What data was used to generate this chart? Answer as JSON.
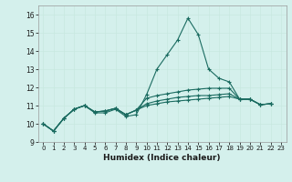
{
  "xlabel": "Humidex (Indice chaleur)",
  "background_color": "#d4f0ec",
  "grid_color": "#c8e8e0",
  "line_color": "#1a6b60",
  "xlim": [
    -0.5,
    23.5
  ],
  "ylim": [
    9,
    16.5
  ],
  "yticks": [
    9,
    10,
    11,
    12,
    13,
    14,
    15,
    16
  ],
  "xticks": [
    0,
    1,
    2,
    3,
    4,
    5,
    6,
    7,
    8,
    9,
    10,
    11,
    12,
    13,
    14,
    15,
    16,
    17,
    18,
    19,
    20,
    21,
    22,
    23
  ],
  "series": [
    [
      10.0,
      9.6,
      10.3,
      10.8,
      11.0,
      10.6,
      10.6,
      10.8,
      10.4,
      10.5,
      11.6,
      13.0,
      13.8,
      14.6,
      15.8,
      14.9,
      13.0,
      12.5,
      12.3,
      11.35,
      11.35,
      11.05,
      11.1
    ],
    [
      10.0,
      9.6,
      10.3,
      10.8,
      11.0,
      10.65,
      10.7,
      10.85,
      10.5,
      10.75,
      11.4,
      11.55,
      11.65,
      11.75,
      11.85,
      11.9,
      11.95,
      11.95,
      11.95,
      11.35,
      11.35,
      11.05,
      11.1
    ],
    [
      10.0,
      9.6,
      10.3,
      10.8,
      11.0,
      10.65,
      10.7,
      10.85,
      10.5,
      10.75,
      11.1,
      11.25,
      11.35,
      11.45,
      11.5,
      11.55,
      11.55,
      11.6,
      11.65,
      11.35,
      11.35,
      11.05,
      11.1
    ],
    [
      10.0,
      9.6,
      10.3,
      10.8,
      11.0,
      10.65,
      10.7,
      10.85,
      10.5,
      10.75,
      11.0,
      11.1,
      11.2,
      11.25,
      11.3,
      11.35,
      11.4,
      11.45,
      11.5,
      11.35,
      11.35,
      11.05,
      11.1
    ]
  ]
}
